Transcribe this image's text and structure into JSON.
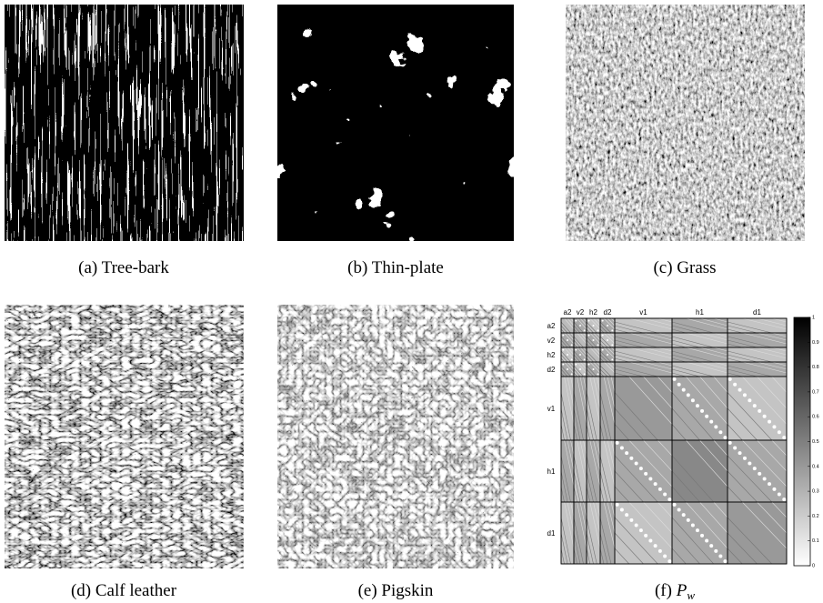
{
  "panels": [
    {
      "label": "(a)",
      "name": "Tree-bark"
    },
    {
      "label": "(b)",
      "name": "Thin-plate"
    },
    {
      "label": "(c)",
      "name": "Grass"
    },
    {
      "label": "(d)",
      "name": "Calf leather"
    },
    {
      "label": "(e)",
      "name": "Pigskin"
    },
    {
      "label": "(f)",
      "name": "P",
      "subscript": "w"
    }
  ],
  "matrix": {
    "labels": [
      "a2",
      "v2",
      "h2",
      "d2",
      "v1",
      "h1",
      "d1"
    ],
    "colorbar_ticks": [
      0,
      0.1,
      0.2,
      0.3,
      0.4,
      0.5,
      0.6,
      0.7,
      0.8,
      0.9,
      1
    ]
  }
}
